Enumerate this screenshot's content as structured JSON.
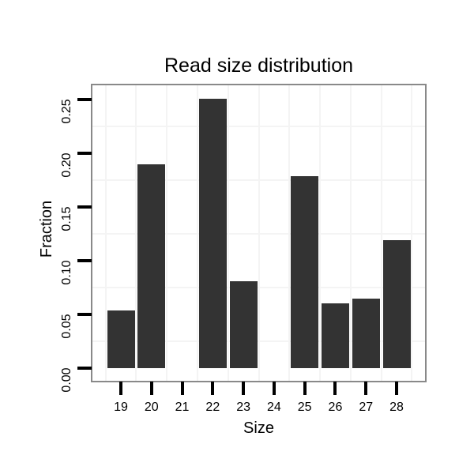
{
  "chart_data": {
    "type": "bar",
    "title": "Read size distribution",
    "xlabel": "Size",
    "ylabel": "Fraction",
    "categories": [
      "19",
      "20",
      "21",
      "22",
      "23",
      "24",
      "25",
      "26",
      "27",
      "28"
    ],
    "values": [
      0.054,
      0.19,
      0,
      0.251,
      0.081,
      0,
      0.179,
      0.06,
      0.065,
      0.119
    ],
    "ylim": [
      0,
      0.263
    ],
    "yticks": [
      0,
      0.05,
      0.1,
      0.15,
      0.2,
      0.25
    ],
    "ytick_labels": [
      "0.00",
      "0.05",
      "0.10",
      "0.15",
      "0.20",
      "0.25"
    ],
    "minor_y_gridlines": [
      0.025,
      0.075,
      0.125,
      0.175,
      0.225
    ],
    "grid": "minor-gridlines-only",
    "legend": "none",
    "bar_color": "#333333",
    "colors": {
      "background": "#ffffff",
      "panel_border": "#898989",
      "gridline": "#f4f4f4",
      "text": "#000000",
      "tick": "#000000"
    }
  }
}
